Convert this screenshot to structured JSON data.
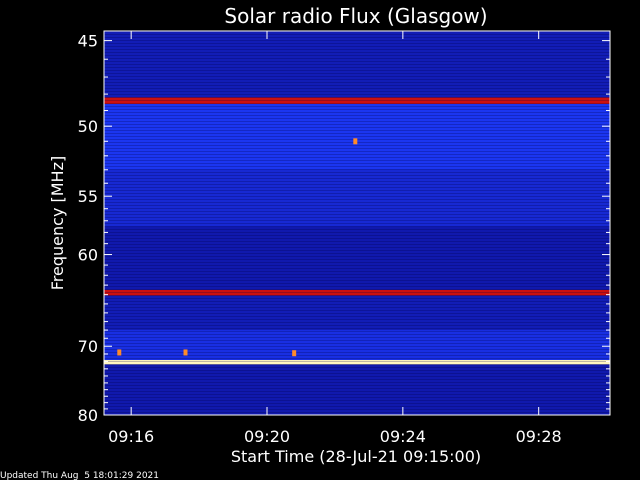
{
  "chart_data": {
    "type": "heatmap",
    "title": "Solar radio Flux (Glasgow)",
    "xlabel": "Start Time (28-Jul-21 09:15:00)",
    "ylabel": "Frequency [MHz]",
    "x_ticks": [
      "09:16",
      "09:20",
      "09:24",
      "09:28"
    ],
    "x_tick_minutes": [
      1,
      5,
      9,
      13
    ],
    "xlim_minutes": [
      0.2,
      15.1
    ],
    "y_ticks": [
      45,
      50,
      55,
      60,
      70,
      80
    ],
    "ylim": [
      44.5,
      80
    ],
    "y_scale": "reciprocal",
    "grid": false,
    "colors": {
      "background": "#000000",
      "low": "#0a0a8a",
      "mid": "#1e3cff",
      "interference": "#cc1010",
      "strong": "#fff6c0"
    },
    "bands": [
      {
        "freq_from": 44.5,
        "freq_to": 48.2,
        "level": 0.15
      },
      {
        "freq_from": 48.2,
        "freq_to": 48.6,
        "level": 0.85
      },
      {
        "freq_from": 48.6,
        "freq_to": 53.0,
        "level": 0.35
      },
      {
        "freq_from": 53.0,
        "freq_to": 57.5,
        "level": 0.25
      },
      {
        "freq_from": 57.5,
        "freq_to": 63.5,
        "level": 0.12
      },
      {
        "freq_from": 63.5,
        "freq_to": 64.1,
        "level": 0.9
      },
      {
        "freq_from": 64.1,
        "freq_to": 68.0,
        "level": 0.15
      },
      {
        "freq_from": 68.0,
        "freq_to": 71.8,
        "level": 0.3
      },
      {
        "freq_from": 71.8,
        "freq_to": 72.4,
        "level": 1.0
      },
      {
        "freq_from": 72.4,
        "freq_to": 80.0,
        "level": 0.12
      }
    ],
    "bursts": [
      {
        "minute": 0.65,
        "freq": 70.8
      },
      {
        "minute": 2.6,
        "freq": 70.8
      },
      {
        "minute": 5.8,
        "freq": 70.9
      },
      {
        "minute": 7.6,
        "freq": 51.0
      }
    ]
  },
  "footer": {
    "updated": "Updated Thu Aug  5 18:01:29 2021"
  }
}
